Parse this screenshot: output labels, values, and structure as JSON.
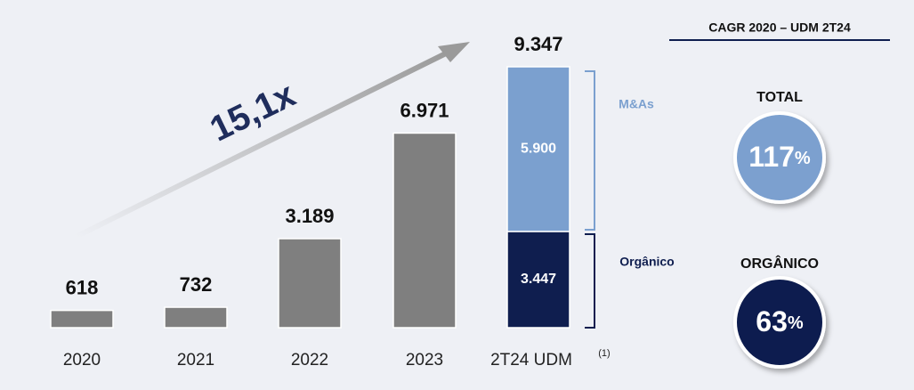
{
  "chart_data": {
    "type": "bar",
    "categories": [
      "2020",
      "2021",
      "2022",
      "2023",
      "2T24 UDM"
    ],
    "category_note": "(1)",
    "series": [
      {
        "color": "#7f7f7f",
        "values": [
          618,
          732,
          3189,
          6971,
          null
        ]
      },
      {
        "name": "Orgânico",
        "color": "#0f1e4f",
        "values": [
          null,
          null,
          null,
          null,
          3447
        ],
        "value_labels": [
          null,
          null,
          null,
          null,
          "3.447"
        ]
      },
      {
        "name": "M&As",
        "color": "#7ba0cf",
        "values": [
          null,
          null,
          null,
          null,
          5900
        ],
        "value_labels": [
          null,
          null,
          null,
          null,
          "5.900"
        ]
      }
    ],
    "totals": [
      618,
      732,
      3189,
      6971,
      9347
    ],
    "total_labels": [
      "618",
      "732",
      "3.189",
      "6.971",
      "9.347"
    ],
    "growth_label": "15,1x",
    "cagr": {
      "title": "CAGR 2020 – UDM 2T24",
      "items": [
        {
          "label": "TOTAL",
          "value": 117,
          "unit": "%",
          "color": "#7ba0cf"
        },
        {
          "label": "ORGÂNICO",
          "value": 63,
          "unit": "%",
          "color": "#0f1e4f"
        }
      ]
    }
  }
}
